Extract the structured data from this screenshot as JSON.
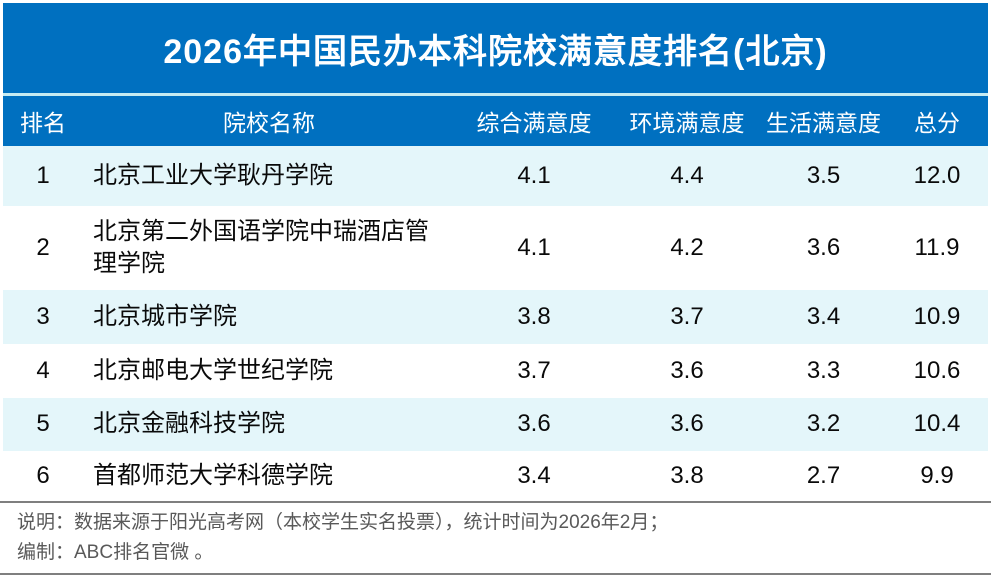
{
  "title": "2026年中国民办本科院校满意度排名(北京)",
  "colors": {
    "primary_blue": "#0070C0",
    "row_alt": "#E4F6FA",
    "separator_cyan": "#C6EBF2",
    "rule_gray": "#7F7F7F",
    "footer_text": "#595959"
  },
  "table": {
    "columns": [
      "排名",
      "院校名称",
      "综合满意度",
      "环境满意度",
      "生活满意度",
      "总分"
    ],
    "rows": [
      {
        "rank": "1",
        "name": "北京工业大学耿丹学院",
        "comprehensive": "4.1",
        "environment": "4.4",
        "life": "3.5",
        "total": "12.0"
      },
      {
        "rank": "2",
        "name": "北京第二外国语学院中瑞酒店管理学院",
        "comprehensive": "4.1",
        "environment": "4.2",
        "life": "3.6",
        "total": "11.9"
      },
      {
        "rank": "3",
        "name": "北京城市学院",
        "comprehensive": "3.8",
        "environment": "3.7",
        "life": "3.4",
        "total": "10.9"
      },
      {
        "rank": "4",
        "name": "北京邮电大学世纪学院",
        "comprehensive": "3.7",
        "environment": "3.6",
        "life": "3.3",
        "total": "10.6"
      },
      {
        "rank": "5",
        "name": "北京金融科技学院",
        "comprehensive": "3.6",
        "environment": "3.6",
        "life": "3.2",
        "total": "10.4"
      },
      {
        "rank": "6",
        "name": "首都师范大学科德学院",
        "comprehensive": "3.4",
        "environment": "3.8",
        "life": "2.7",
        "total": "9.9"
      }
    ]
  },
  "footer": {
    "note_line": "说明：数据来源于阳光高考网（本校学生实名投票），统计时间为2026年2月；",
    "credit_line": "编制：ABC排名官微 。"
  },
  "chart_data": {
    "type": "table",
    "title": "2026年中国民办本科院校满意度排名(北京)",
    "columns": [
      "排名",
      "院校名称",
      "综合满意度",
      "环境满意度",
      "生活满意度",
      "总分"
    ],
    "rows": [
      [
        1,
        "北京工业大学耿丹学院",
        4.1,
        4.4,
        3.5,
        12.0
      ],
      [
        2,
        "北京第二外国语学院中瑞酒店管理学院",
        4.1,
        4.2,
        3.6,
        11.9
      ],
      [
        3,
        "北京城市学院",
        3.8,
        3.7,
        3.4,
        10.9
      ],
      [
        4,
        "北京邮电大学世纪学院",
        3.7,
        3.6,
        3.3,
        10.6
      ],
      [
        5,
        "北京金融科技学院",
        3.6,
        3.6,
        3.2,
        10.4
      ],
      [
        6,
        "首都师范大学科德学院",
        3.4,
        3.8,
        2.7,
        9.9
      ]
    ],
    "notes": [
      "说明：数据来源于阳光高考网（本校学生实名投票），统计时间为2026年2月；",
      "编制：ABC排名官微 。"
    ]
  }
}
